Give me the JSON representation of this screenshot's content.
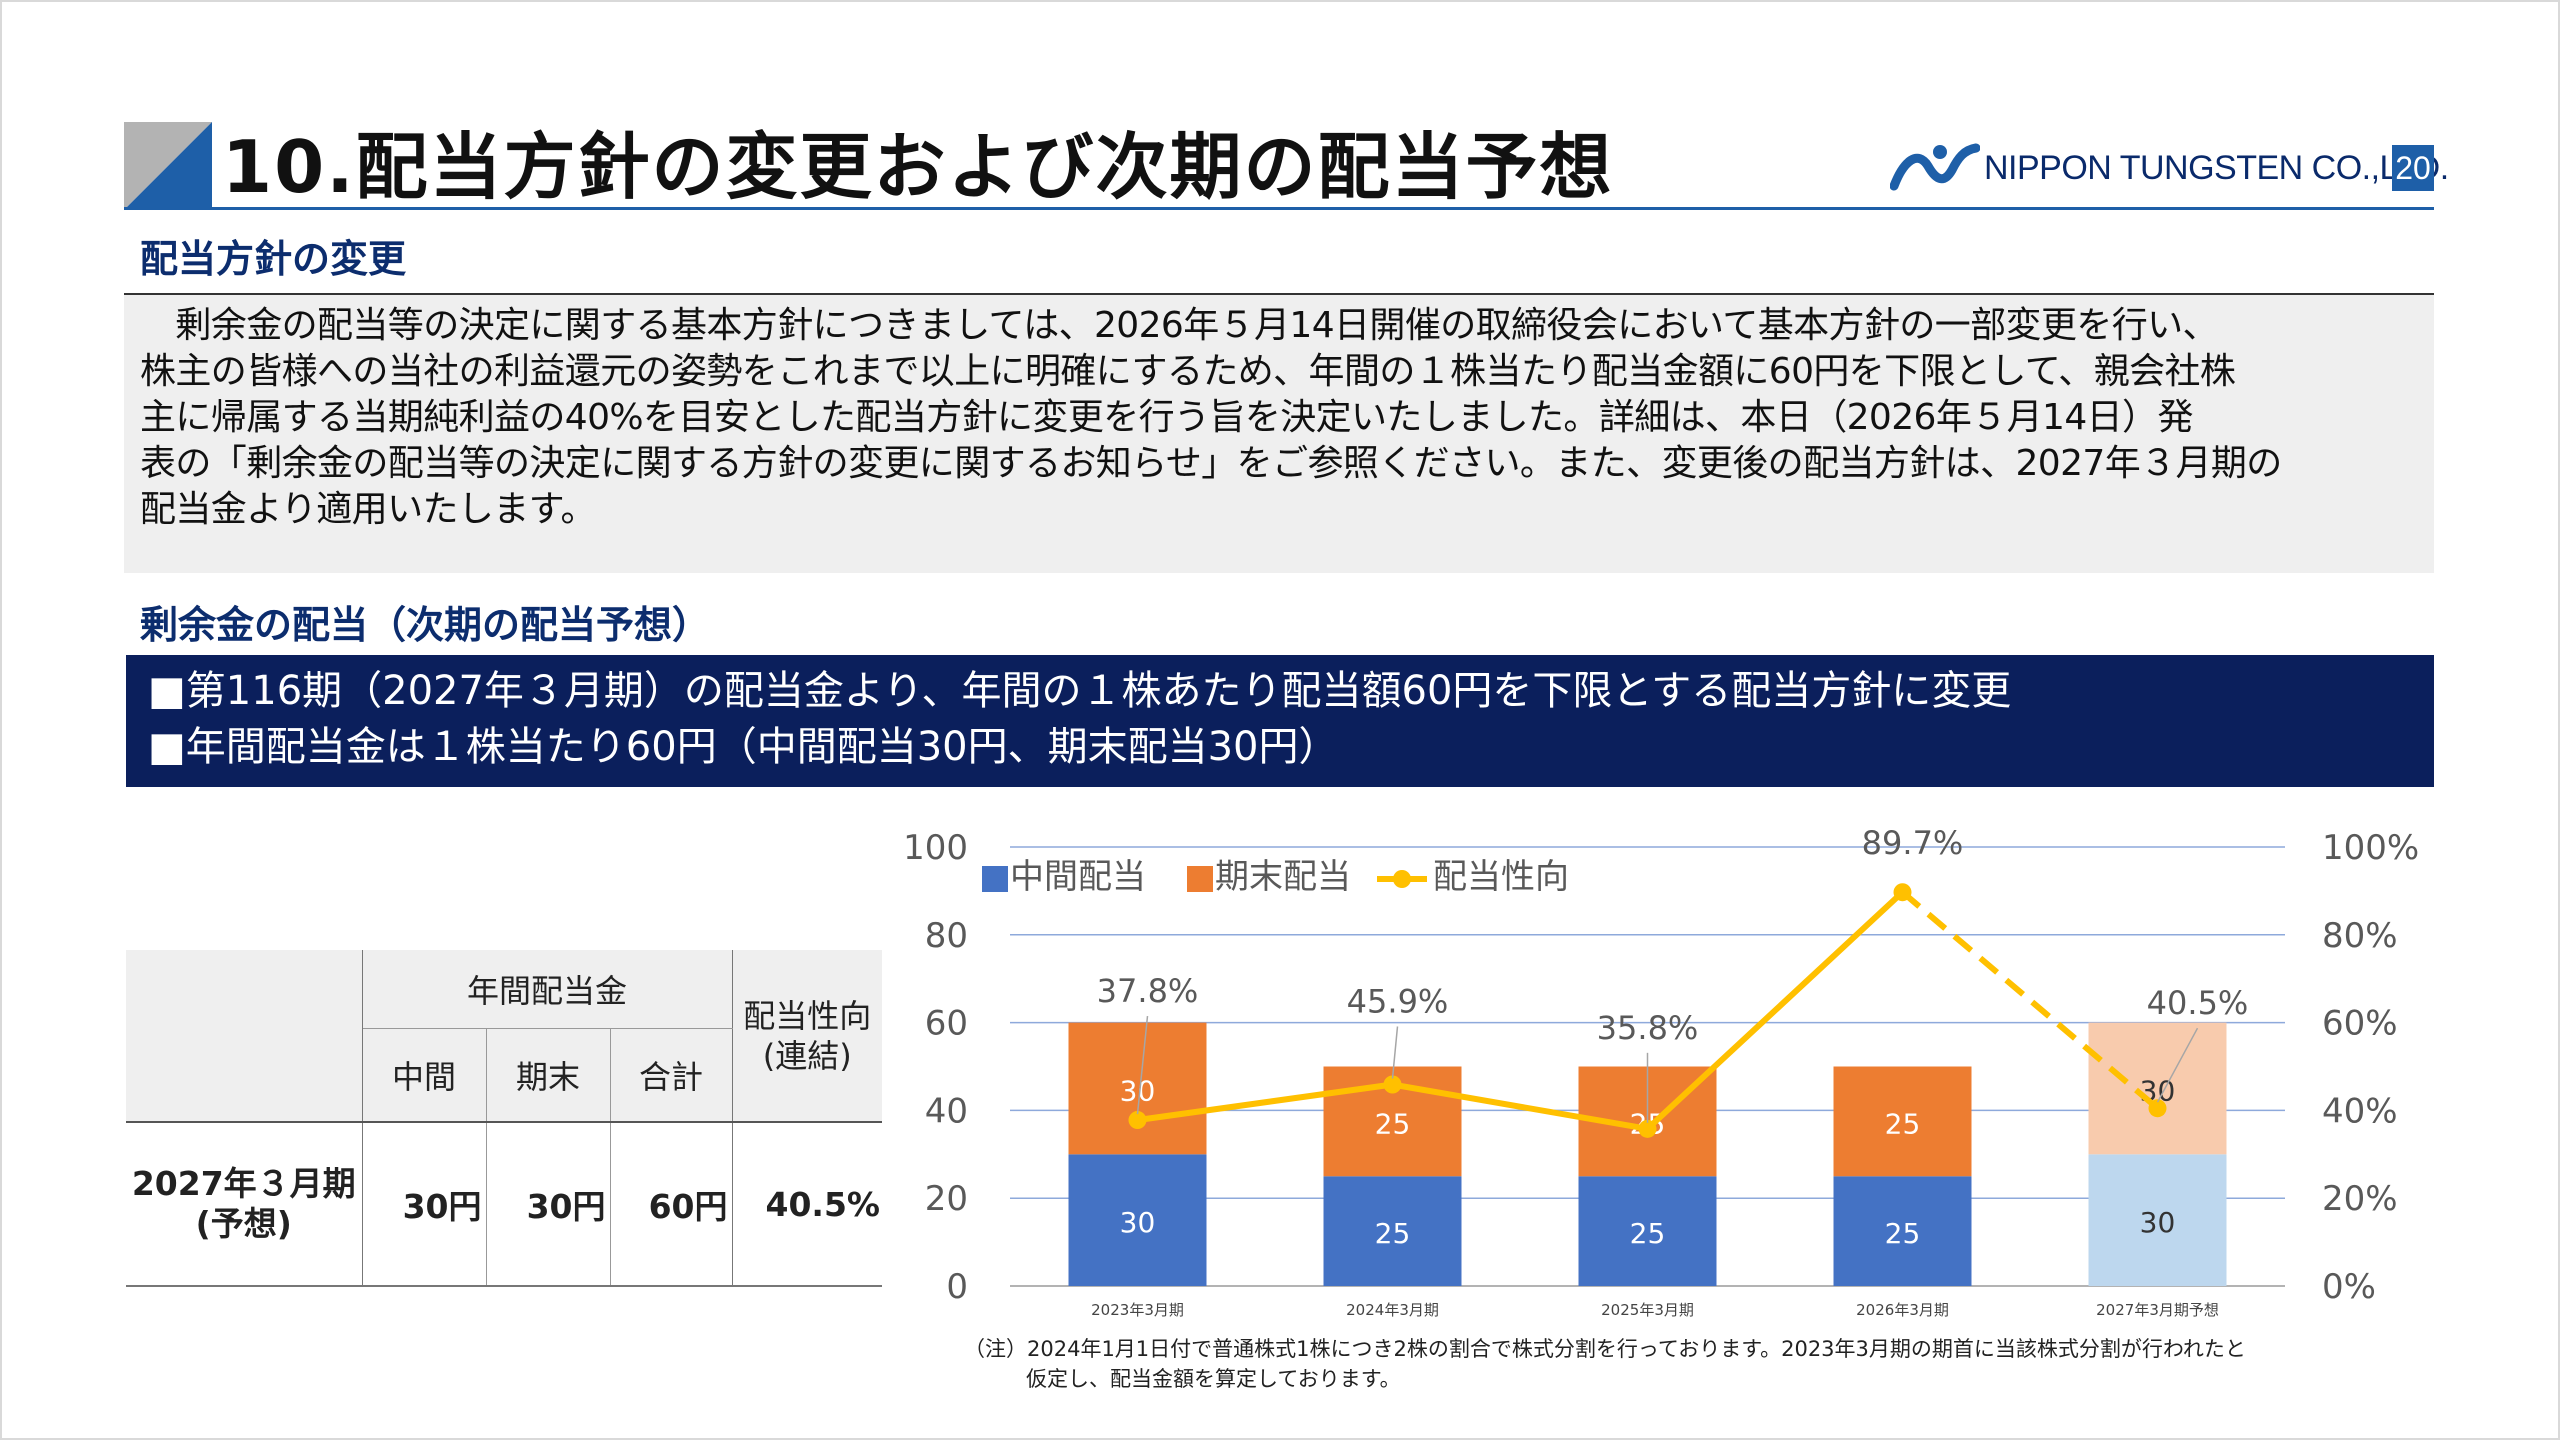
{
  "header": {
    "title": "10.配当方針の変更および次期の配当予想",
    "logo_text": "NIPPON TUNGSTEN CO.,LTD.",
    "page_number": "20",
    "brand_color": "#1e5fa8"
  },
  "policy_section": {
    "heading": "配当方針の変更",
    "paragraph_lines": [
      "　剰余金の配当等の決定に関する基本方針につきましては、2026年５月14日開催の取締役会において基本方針の一部変更を行い、",
      "株主の皆様への当社の利益還元の姿勢をこれまで以上に明確にするため、年間の１株当たり配当金額に60円を下限として、親会社株",
      "主に帰属する当期純利益の40%を目安とした配当方針に変更を行う旨を決定いたしました。詳細は、本日（2026年５月14日）発",
      "表の「剰余金の配当等の決定に関する方針の変更に関するお知らせ」をご参照ください。また、変更後の配当方針は、2027年３月期の",
      "配当金より適用いたします。"
    ]
  },
  "forecast_section": {
    "heading": "剰余金の配当（次期の配当予想）",
    "banner_lines": [
      "■第116期（2027年３月期）の配当金より、年間の１株あたり配当額60円を下限とする配当方針に変更",
      "■年間配当金は１株当たり60円（中間配当30円、期末配当30円）"
    ]
  },
  "dividend_table": {
    "group_header": "年間配当金",
    "sub_headers": [
      "中間",
      "期末",
      "合計"
    ],
    "payout_header_line1": "配当性向",
    "payout_header_line2": "(連結)",
    "row_label_line1": "2027年３月期",
    "row_label_line2": "(予想)",
    "interim": "30円",
    "year_end": "30円",
    "total": "60円",
    "payout_ratio": "40.5%"
  },
  "chart_data": {
    "type": "bar",
    "stacked": true,
    "categories": [
      "2023年3月期",
      "2024年3月期",
      "2025年3月期",
      "2026年3月期",
      "2027年3月期予想"
    ],
    "series": [
      {
        "name": "中間配当",
        "values": [
          30,
          25,
          25,
          25,
          30
        ],
        "color": "#4472c4",
        "forecast_color": "#bdd7ee",
        "axis": "left"
      },
      {
        "name": "期末配当",
        "values": [
          30,
          25,
          25,
          25,
          30
        ],
        "color": "#ed7d31",
        "forecast_color": "#f8cbad",
        "axis": "left"
      },
      {
        "name": "配当性向",
        "type": "line",
        "values": [
          37.8,
          45.9,
          35.8,
          89.7,
          40.5
        ],
        "labels": [
          "37.8%",
          "45.9%",
          "35.8%",
          "89.7%",
          "40.5%"
        ],
        "color": "#ffc000",
        "dashed_last_segment": true,
        "axis": "right"
      }
    ],
    "forecast_index": 4,
    "ylim": [
      0,
      100
    ],
    "y_ticks": [
      "0",
      "20",
      "40",
      "60",
      "80",
      "100"
    ],
    "y2lim": [
      0,
      100
    ],
    "y2_ticks": [
      "0%",
      "20%",
      "40%",
      "60%",
      "80%",
      "100%"
    ],
    "grid": true,
    "legend_position": "top-left"
  },
  "note": {
    "line1": "（注）2024年1月1日付で普通株式1株につき2株の割合で株式分割を行っております。2023年3月期の期首に当該株式分割が行われたと",
    "line2": "仮定し、配当金額を算定しております。"
  }
}
